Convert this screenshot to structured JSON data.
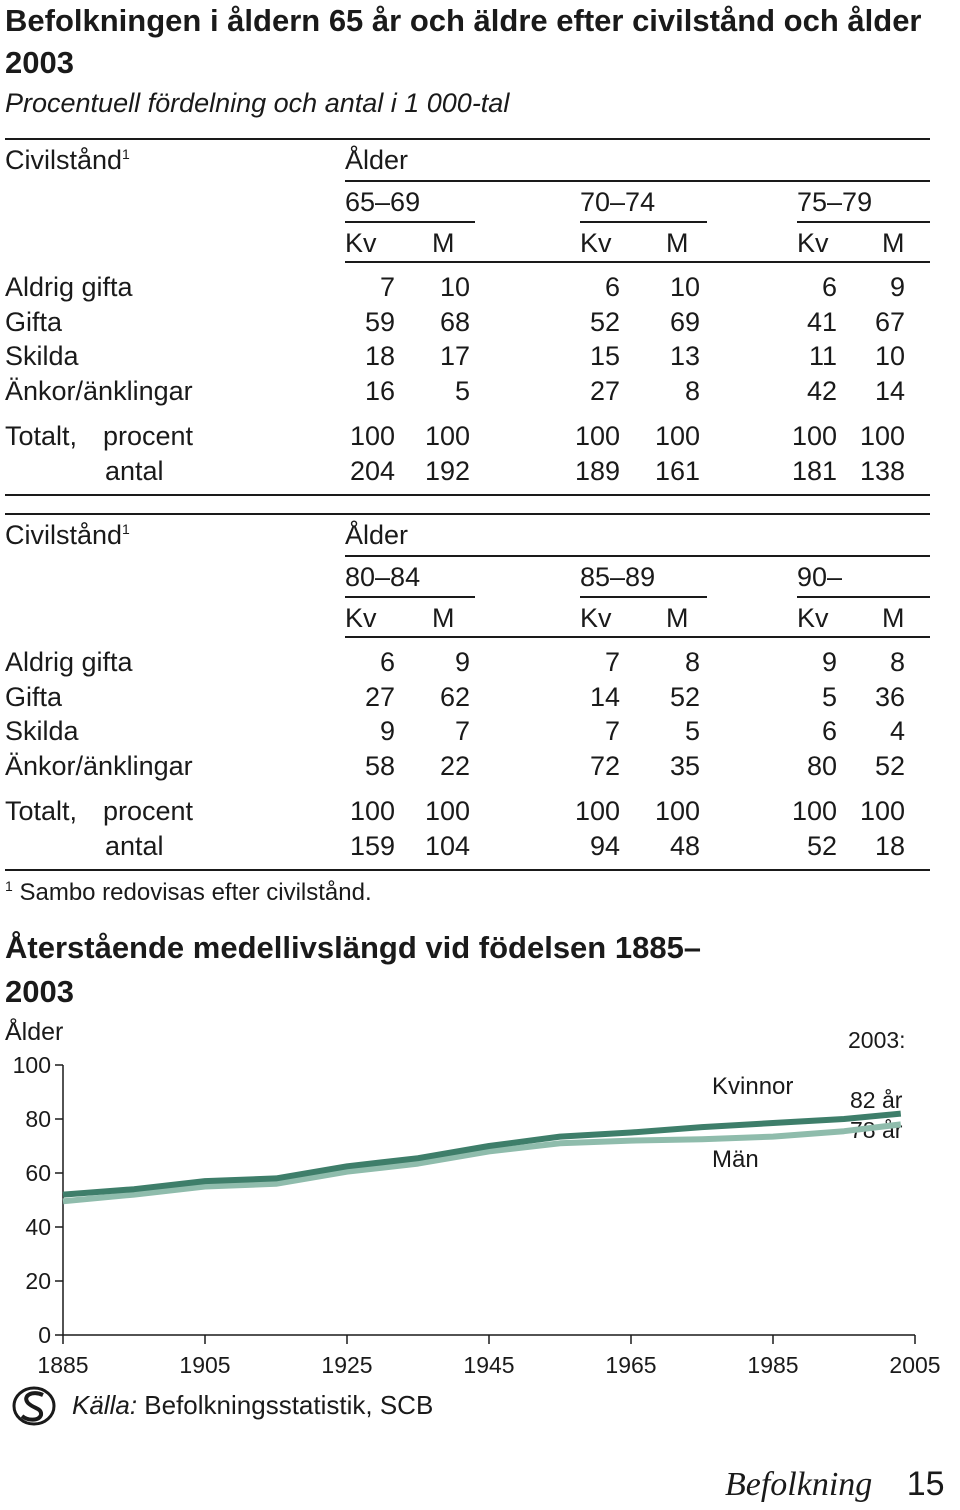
{
  "title": "Befolkningen i åldern 65 år och äldre efter civilstånd och ålder 2003",
  "subtitle": "Procentuell fördelning och antal i 1 000-tal",
  "tables": [
    {
      "rowheader": "Civilstånd",
      "footnote_mark": "1",
      "group_label": "Ålder",
      "age_groups": [
        "65–69",
        "70–74",
        "75–79"
      ],
      "sex_labels": [
        "Kv",
        "M"
      ],
      "rows": [
        {
          "label": "Aldrig gifta",
          "values": [
            "7",
            "10",
            "6",
            "10",
            "6",
            "9"
          ]
        },
        {
          "label": "Gifta",
          "values": [
            "59",
            "68",
            "52",
            "69",
            "41",
            "67"
          ]
        },
        {
          "label": "Skilda",
          "values": [
            "18",
            "17",
            "15",
            "13",
            "11",
            "10"
          ]
        },
        {
          "label": "Änkor/änklingar",
          "values": [
            "16",
            "5",
            "27",
            "8",
            "42",
            "14"
          ]
        }
      ],
      "total_label": "Totalt,",
      "total_procent_label": "procent",
      "total_procent": [
        "100",
        "100",
        "100",
        "100",
        "100",
        "100"
      ],
      "total_antal_label": "antal",
      "total_antal": [
        "204",
        "192",
        "189",
        "161",
        "181",
        "138"
      ]
    },
    {
      "rowheader": "Civilstånd",
      "footnote_mark": "1",
      "group_label": "Ålder",
      "age_groups": [
        "80–84",
        "85–89",
        "90–"
      ],
      "sex_labels": [
        "Kv",
        "M"
      ],
      "rows": [
        {
          "label": "Aldrig gifta",
          "values": [
            "6",
            "9",
            "7",
            "8",
            "9",
            "8"
          ]
        },
        {
          "label": "Gifta",
          "values": [
            "27",
            "62",
            "14",
            "52",
            "5",
            "36"
          ]
        },
        {
          "label": "Skilda",
          "values": [
            "9",
            "7",
            "7",
            "5",
            "6",
            "4"
          ]
        },
        {
          "label": "Änkor/änklingar",
          "values": [
            "58",
            "22",
            "72",
            "35",
            "80",
            "52"
          ]
        }
      ],
      "total_label": "Totalt,",
      "total_procent_label": "procent",
      "total_procent": [
        "100",
        "100",
        "100",
        "100",
        "100",
        "100"
      ],
      "total_antal_label": "antal",
      "total_antal": [
        "159",
        "104",
        "94",
        "48",
        "52",
        "18"
      ]
    }
  ],
  "footnote": {
    "mark": "1",
    "text": "Sambo redovisas efter civilstånd."
  },
  "chart_title": "Återstående medellivslängd vid födelsen 1885–2003",
  "chart_data": {
    "type": "line",
    "title": "Återstående medellivslängd vid födelsen 1885–2003",
    "ylabel": "Ålder",
    "xlabel": "",
    "xlim": [
      1885,
      2005
    ],
    "ylim": [
      0,
      100
    ],
    "x_ticks": [
      1885,
      1905,
      1925,
      1945,
      1965,
      1985,
      2005
    ],
    "y_ticks": [
      0,
      20,
      40,
      60,
      80,
      100
    ],
    "grid": false,
    "series": [
      {
        "name": "Kvinnor",
        "color": "#3e7e6a",
        "x": [
          1885,
          1895,
          1905,
          1915,
          1925,
          1935,
          1945,
          1955,
          1965,
          1975,
          1985,
          1995,
          2003
        ],
        "y": [
          52,
          54,
          57,
          58,
          62.5,
          65.5,
          70,
          73.5,
          75,
          77,
          78.5,
          80,
          82
        ]
      },
      {
        "name": "Män",
        "color": "#8fbcac",
        "x": [
          1885,
          1895,
          1905,
          1915,
          1925,
          1935,
          1945,
          1955,
          1965,
          1975,
          1985,
          1995,
          2003
        ],
        "y": [
          49.5,
          52,
          55,
          56,
          60.5,
          63.5,
          68,
          71,
          72,
          72.5,
          73.5,
          75.5,
          78
        ]
      }
    ],
    "annotations": [
      "2003:",
      "82 år",
      "78 år"
    ]
  },
  "source": {
    "label": "Källa:",
    "text": "Befolkningsstatistik, SCB",
    "icon": "scb-logo-icon"
  },
  "footer": {
    "section": "Befolkning",
    "page": "15"
  }
}
